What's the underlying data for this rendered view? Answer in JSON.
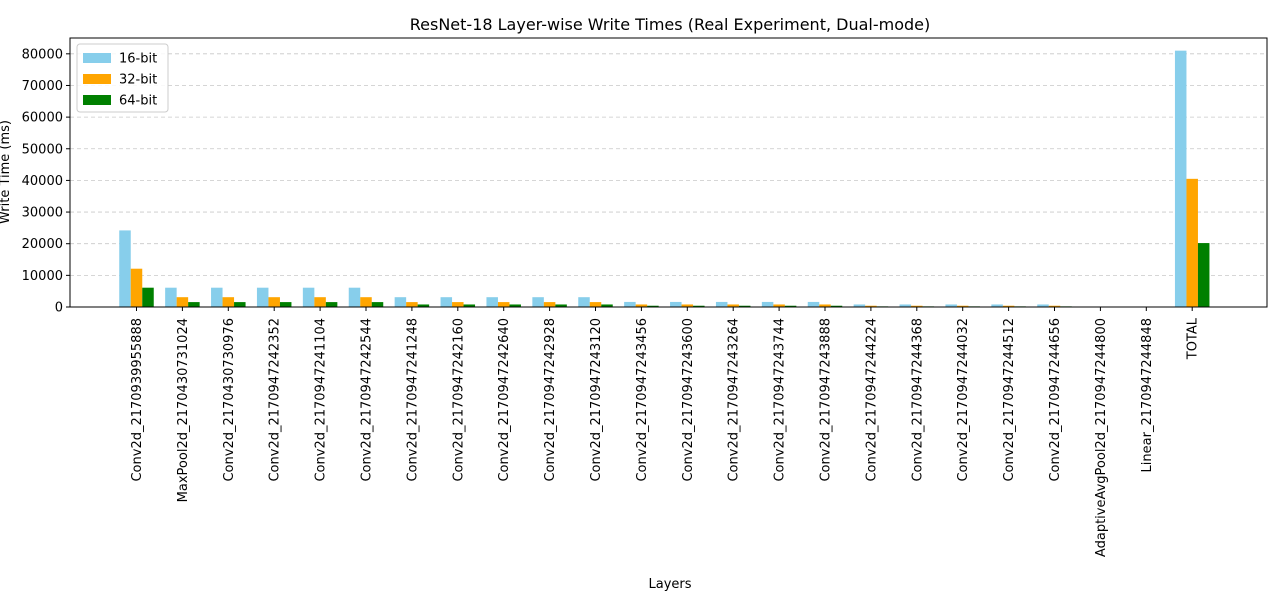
{
  "chart_data": {
    "type": "bar",
    "title": "ResNet-18 Layer-wise Write Times (Real Experiment, Dual-mode)",
    "xlabel": "Layers",
    "ylabel": "Write Time (ms)",
    "ylim": [
      0,
      85000
    ],
    "yticks": [
      0,
      10000,
      20000,
      30000,
      40000,
      50000,
      60000,
      70000,
      80000
    ],
    "grid": "y-dashed",
    "legend_position": "top-left",
    "categories": [
      "Conv2d_2170939955888",
      "MaxPool2d_2170430731024",
      "Conv2d_2170430730976",
      "Conv2d_2170947242352",
      "Conv2d_2170947241104",
      "Conv2d_2170947242544",
      "Conv2d_2170947241248",
      "Conv2d_2170947242160",
      "Conv2d_2170947242640",
      "Conv2d_2170947242928",
      "Conv2d_2170947243120",
      "Conv2d_2170947243456",
      "Conv2d_2170947243600",
      "Conv2d_2170947243264",
      "Conv2d_2170947243744",
      "Conv2d_2170947243888",
      "Conv2d_2170947244224",
      "Conv2d_2170947244368",
      "Conv2d_2170947244032",
      "Conv2d_2170947244512",
      "Conv2d_2170947244656",
      "AdaptiveAvgPool2d_2170947244800",
      "Linear_2170947244848",
      "TOTAL"
    ],
    "series": [
      {
        "name": "16-bit",
        "color": "#87ceeb",
        "values": [
          24200,
          6100,
          6100,
          6100,
          6100,
          6100,
          3100,
          3100,
          3100,
          3100,
          3100,
          1600,
          1600,
          1600,
          1600,
          1600,
          800,
          800,
          800,
          800,
          800,
          0,
          0,
          81000
        ]
      },
      {
        "name": "32-bit",
        "color": "#ffa500",
        "values": [
          12100,
          3100,
          3100,
          3100,
          3100,
          3100,
          1550,
          1550,
          1550,
          1550,
          1550,
          800,
          800,
          800,
          800,
          800,
          400,
          400,
          400,
          400,
          400,
          0,
          0,
          40500
        ]
      },
      {
        "name": "64-bit",
        "color": "#008000",
        "values": [
          6100,
          1550,
          1550,
          1550,
          1550,
          1550,
          800,
          800,
          800,
          800,
          800,
          400,
          400,
          400,
          400,
          400,
          200,
          200,
          200,
          200,
          200,
          0,
          0,
          20200
        ]
      }
    ]
  }
}
